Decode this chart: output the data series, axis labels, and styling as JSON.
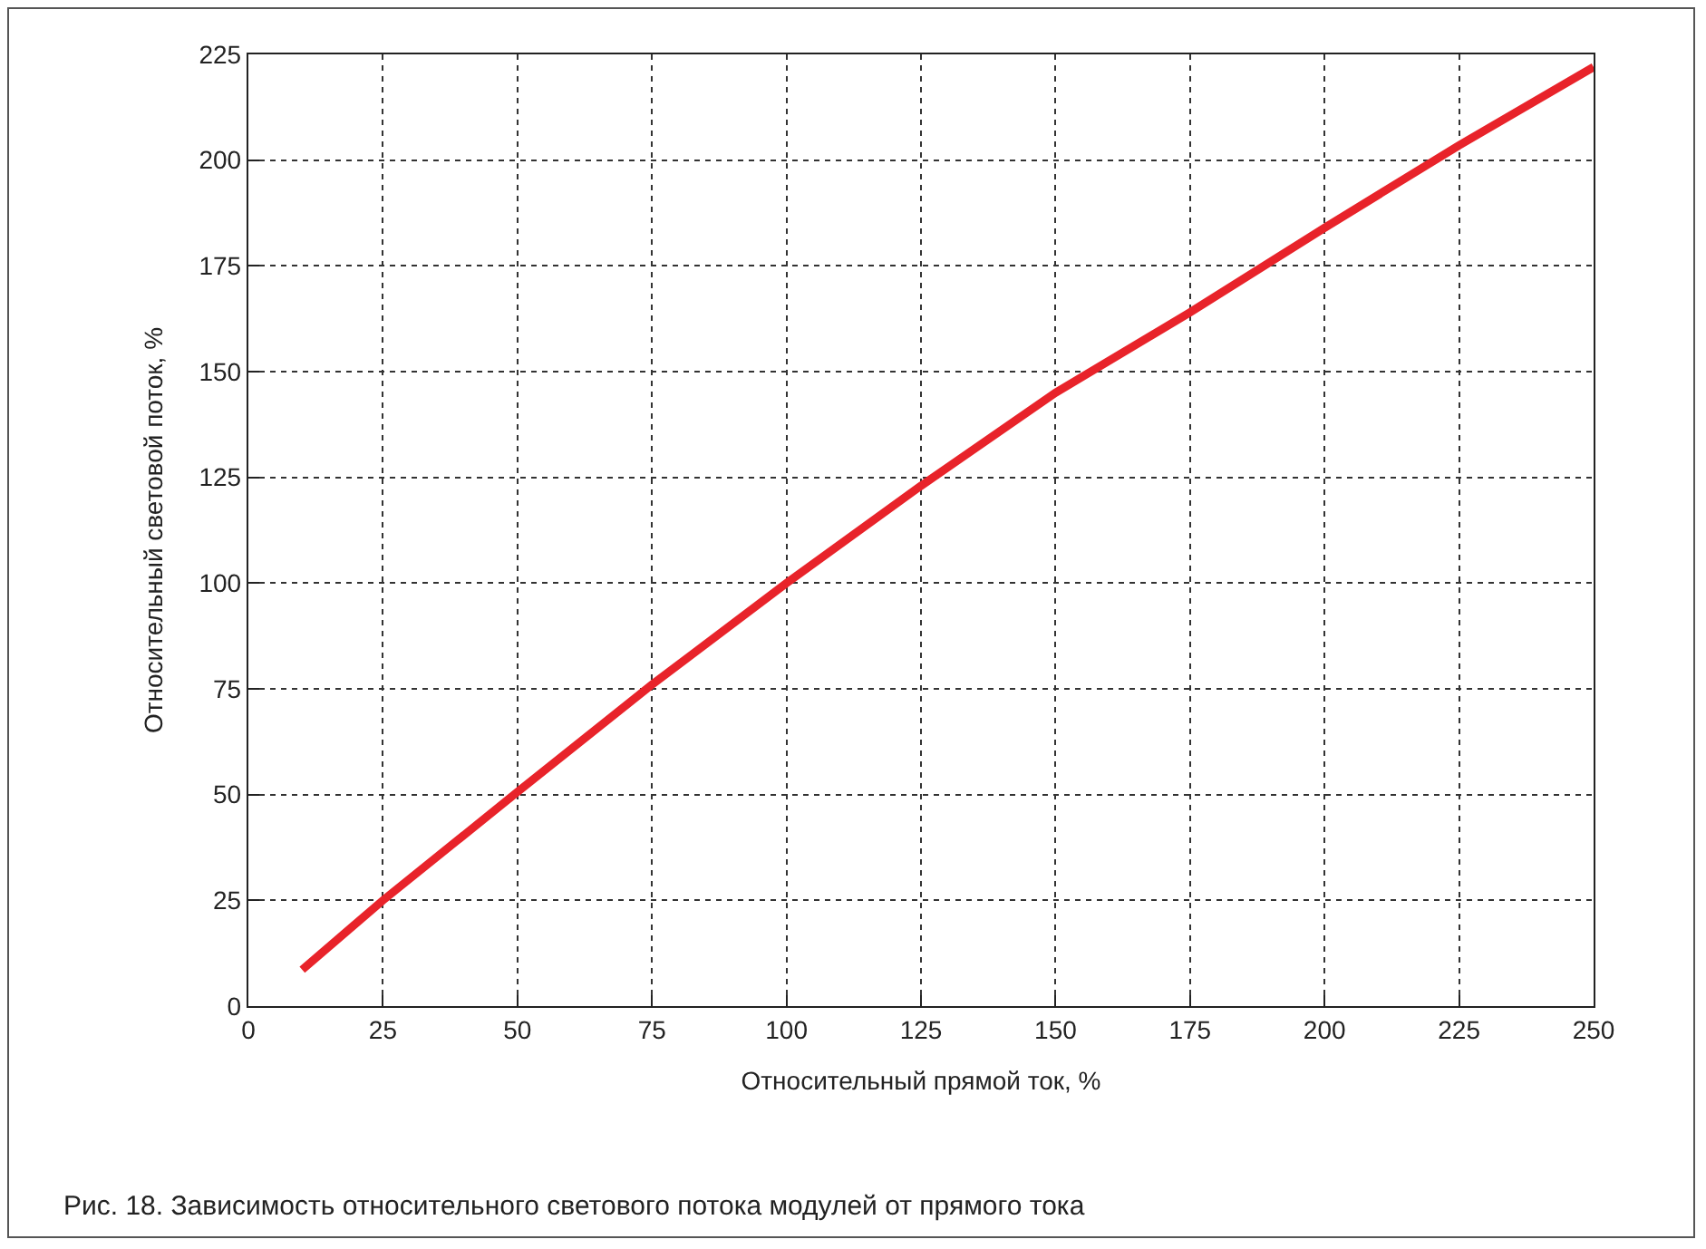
{
  "chart_data": {
    "type": "line",
    "xlabel": "Относительный прямой ток, %",
    "ylabel": "Относительный световой поток, %",
    "annotations": [
      "Рис. 18. Зависимость относительного светового потока модулей от прямого тока"
    ],
    "x": [
      10,
      25,
      50,
      75,
      100,
      125,
      150,
      175,
      200,
      225,
      250
    ],
    "series": [
      {
        "color": "#e8232a",
        "values": [
          8.6,
          25,
          50.6,
          76,
          100,
          123,
          145,
          164,
          184,
          203.5,
          222
        ]
      }
    ],
    "xlim": [
      0,
      250
    ],
    "xticks": [
      0,
      25,
      50,
      75,
      100,
      125,
      150,
      175,
      200,
      225,
      250
    ],
    "ylim": [
      0,
      225
    ],
    "yticks": [
      0,
      25,
      50,
      75,
      100,
      125,
      150,
      175,
      200,
      225
    ],
    "grid": true,
    "line_style": "solid",
    "marker": "none"
  }
}
